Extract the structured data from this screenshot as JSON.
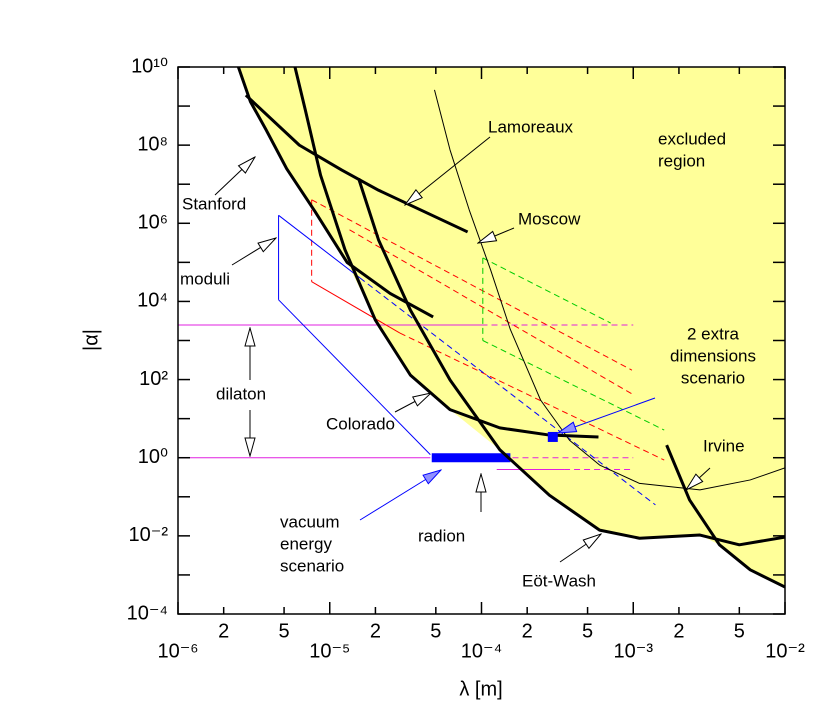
{
  "chart_data": {
    "type": "line",
    "xlabel": "λ  [m]",
    "ylabel": "|α|",
    "xscale": "log",
    "yscale": "log",
    "xlim": [
      1e-06,
      0.01
    ],
    "ylim": [
      0.0001,
      10000000000.0
    ],
    "xticks": [
      {
        "value": 1e-06,
        "label": "10⁻⁶"
      },
      {
        "value": 2e-06,
        "label": "2"
      },
      {
        "value": 5e-06,
        "label": "5"
      },
      {
        "value": 1e-05,
        "label": "10⁻⁵"
      },
      {
        "value": 2e-05,
        "label": "2"
      },
      {
        "value": 5e-05,
        "label": "5"
      },
      {
        "value": 0.0001,
        "label": "10⁻⁴"
      },
      {
        "value": 0.0002,
        "label": "2"
      },
      {
        "value": 0.0005,
        "label": "5"
      },
      {
        "value": 0.001,
        "label": "10⁻³"
      },
      {
        "value": 0.002,
        "label": "2"
      },
      {
        "value": 0.005,
        "label": "5"
      },
      {
        "value": 0.01,
        "label": "10⁻²"
      }
    ],
    "yticks": [
      {
        "value": 0.0001,
        "label": "10⁻⁴"
      },
      {
        "value": 0.01,
        "label": "10⁻²"
      },
      {
        "value": 1,
        "label": "10⁰"
      },
      {
        "value": 100,
        "label": "10²"
      },
      {
        "value": 10000,
        "label": "10⁴"
      },
      {
        "value": 1000000.0,
        "label": "10⁶"
      },
      {
        "value": 100000000.0,
        "label": "10⁸"
      },
      {
        "value": 10000000000.0,
        "label": "10¹⁰"
      }
    ],
    "yminorticks": [
      0.001,
      0.1,
      10,
      1000,
      100000.0,
      10000000.0,
      1000000000.0
    ],
    "region": {
      "color": "#ffff99",
      "x": [
        2.5e-06,
        3e-06,
        3.8e-06,
        5.2e-06,
        8e-06,
        1.3e-05,
        2e-05,
        3.4e-05,
        6.2e-05,
        0.000132,
        0.00028,
        0.0006,
        0.0011,
        0.00275,
        0.0037,
        0.0059,
        0.01
      ],
      "values": [
        10000000000.0,
        1300000000.0,
        250000000.0,
        25000000.0,
        2000000.0,
        100000.0,
        3300,
        130,
        17,
        1.6,
        0.11,
        0.014,
        0.0087,
        0.0105,
        0.0059,
        0.00135,
        0.00049
      ]
    },
    "series": [
      {
        "color": "#e020e0",
        "style": "solid",
        "x": [
          1e-06,
          0.0001
        ],
        "values": [
          2500,
          2500
        ]
      },
      {
        "color": "#e020e0",
        "style": "dashed",
        "x": [
          0.0001,
          0.001
        ],
        "values": [
          2500,
          2500
        ]
      },
      {
        "color": "#e020e0",
        "style": "solid",
        "x": [
          1e-06,
          4.6e-05
        ],
        "values": [
          1,
          1
        ]
      },
      {
        "color": "#e020e0",
        "style": "dashed",
        "x": [
          0.00016,
          0.001
        ],
        "values": [
          1,
          1
        ]
      },
      {
        "color": "#e020e0",
        "style": "solid",
        "x": [
          0.000126,
          0.00035
        ],
        "values": [
          0.5,
          0.5
        ]
      },
      {
        "color": "#e020e0",
        "style": "dashed",
        "x": [
          0.00035,
          0.001
        ],
        "values": [
          0.5,
          0.5
        ]
      },
      {
        "color": "#ff0000",
        "style": "dashed",
        "x": [
          7.6e-06,
          7.6e-06
        ],
        "values": [
          4000000.0,
          32000
        ]
      },
      {
        "color": "#ff0000",
        "style": "solid",
        "x": [
          7.6e-06,
          2.9e-05
        ],
        "values": [
          32000,
          1550
        ]
      },
      {
        "color": "#ff0000",
        "style": "dashed",
        "x": [
          2.9e-05,
          0.0016
        ],
        "values": [
          1550,
          0.87
        ]
      },
      {
        "color": "#ff0000",
        "style": "dashed",
        "x": [
          7.6e-06,
          0.00098
        ],
        "values": [
          4000000.0,
          174
        ]
      },
      {
        "color": "#ff0000",
        "style": "dashed",
        "x": [
          1.35e-05,
          0.00098
        ],
        "values": [
          680000,
          43
        ]
      },
      {
        "color": "#00cc00",
        "style": "dashed",
        "x": [
          0.000102,
          0.00071
        ],
        "values": [
          130000,
          2800
        ]
      },
      {
        "color": "#00cc00",
        "style": "dashed",
        "x": [
          0.000102,
          0.000102
        ],
        "values": [
          130000,
          1000
        ]
      },
      {
        "color": "#00cc00",
        "style": "dashed",
        "x": [
          0.000102,
          0.0016
        ],
        "values": [
          1000,
          5.1
        ]
      },
      {
        "color": "#0000ff",
        "style": "solid",
        "x": [
          4.6e-06,
          4.6e-06
        ],
        "values": [
          1600000.0,
          11000
        ]
      },
      {
        "color": "#0000ff",
        "style": "solid",
        "x": [
          4.6e-06,
          1.58e-05
        ],
        "values": [
          1600000.0,
          40000
        ]
      },
      {
        "color": "#0000ff",
        "style": "dashed",
        "x": [
          1.58e-05,
          0.0014
        ],
        "values": [
          40000,
          0.062
        ]
      },
      {
        "color": "#0000ff",
        "style": "solid",
        "x": [
          4.6e-06,
          4.6e-05
        ],
        "values": [
          11000,
          1.2
        ]
      },
      {
        "color": "#0000ff",
        "style": "heavy",
        "x": [
          4.7e-05,
          0.000155
        ],
        "values": [
          1,
          1
        ]
      },
      {
        "color": "#000000",
        "style": "thick",
        "x": [
          2.5e-06,
          3e-06,
          3.8e-06,
          5.2e-06,
          8e-06,
          1.3e-05,
          2.5e-05,
          4.8e-05
        ],
        "values": [
          10000000000.0,
          1300000000.0,
          250000000.0,
          25000000.0,
          2000000.0,
          100000.0,
          16000,
          4000
        ]
      },
      {
        "color": "#000000",
        "style": "thick",
        "x": [
          2.8e-06,
          6.3e-06,
          1.2e-05,
          2.1e-05,
          8.1e-05
        ],
        "values": [
          1900000000.0,
          100000000.0,
          23000000.0,
          7000000.0,
          600000
        ]
      },
      {
        "color": "#000000",
        "style": "thick",
        "x": [
          5.9e-06,
          6.9e-06,
          8.7e-06,
          1.26e-05,
          2e-05,
          3.4e-05,
          6.2e-05,
          0.000132,
          0.00028,
          0.00059
        ],
        "values": [
          10000000000.0,
          800000000.0,
          17000000.0,
          210000,
          3300,
          130,
          17,
          5.8,
          3.8,
          3.4
        ]
      },
      {
        "color": "#000000",
        "style": "thick",
        "x": [
          1.55e-05,
          2.1e-05,
          3.4e-05,
          6.2e-05,
          0.000132,
          0.00028,
          0.0006,
          0.0011,
          0.00275,
          0.005,
          0.01
        ],
        "values": [
          14000000.0,
          370000,
          6000,
          98,
          1.6,
          0.11,
          0.014,
          0.0087,
          0.0105,
          0.0059,
          0.0093
        ]
      },
      {
        "color": "#000000",
        "style": "thin",
        "x": [
          4.9e-05,
          6.2e-05,
          8.3e-05,
          0.000115,
          0.000155,
          0.000245,
          0.00038,
          0.0006,
          0.0011,
          0.00275,
          0.0059,
          0.01
        ],
        "values": [
          2600000000.0,
          76000000.0,
          2200000.0,
          63000,
          1900,
          30,
          2.8,
          0.65,
          0.22,
          0.15,
          0.27,
          0.55
        ]
      },
      {
        "color": "#000000",
        "style": "thick",
        "x": [
          0.00166,
          0.00235,
          0.0037,
          0.0059,
          0.01
        ],
        "values": [
          2.1,
          0.083,
          0.0059,
          0.00135,
          0.00049
        ]
      }
    ],
    "markers": {
      "color": "#0000ff",
      "x": [
        0.000295
      ],
      "values": [
        3.4
      ]
    },
    "annotations": [
      {
        "text": [
          "Lamoreaux"
        ]
      },
      {
        "text": [
          "excluded",
          "region"
        ]
      },
      {
        "text": [
          "Stanford"
        ]
      },
      {
        "text": [
          "Moscow"
        ]
      },
      {
        "text": [
          "moduli"
        ]
      },
      {
        "text": [
          "2  extra",
          "dimensions",
          "scenario"
        ]
      },
      {
        "text": [
          "dilaton"
        ]
      },
      {
        "text": [
          "Colorado"
        ]
      },
      {
        "text": [
          "Irvine"
        ]
      },
      {
        "text": [
          "vacuum",
          "energy",
          "scenario"
        ]
      },
      {
        "text": [
          "radion"
        ]
      },
      {
        "text": [
          "Eöt-Wash"
        ]
      }
    ]
  }
}
